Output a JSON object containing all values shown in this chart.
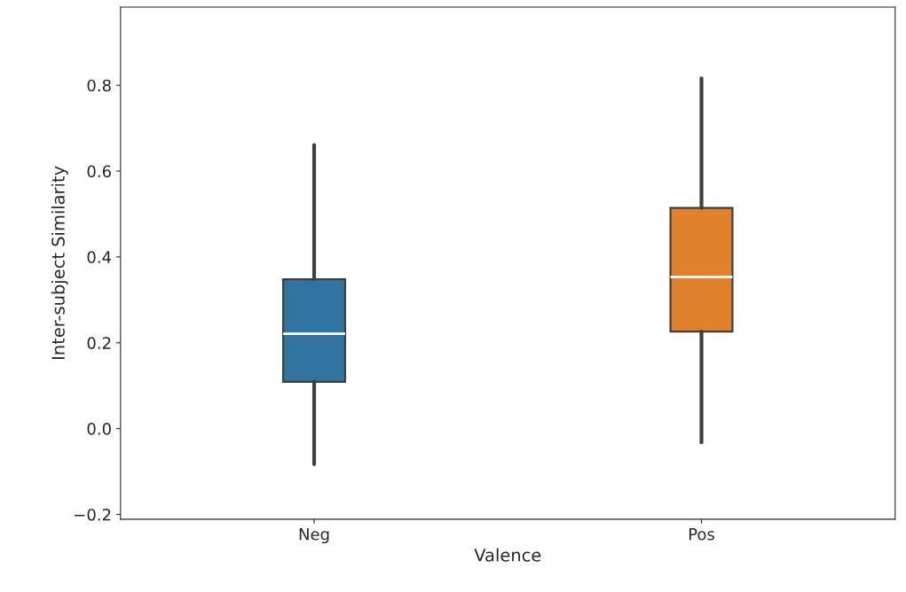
{
  "chart_data": {
    "type": "box",
    "xlabel": "Valence",
    "ylabel": "Inter-subject Similarity",
    "categories": [
      "Neg",
      "Pos"
    ],
    "colors": [
      "#3274a1",
      "#e1812c"
    ],
    "boxes": [
      {
        "low": -0.083,
        "q1": 0.109,
        "median": 0.221,
        "q3": 0.348,
        "high": 0.661
      },
      {
        "low": -0.032,
        "q1": 0.226,
        "median": 0.353,
        "q3": 0.514,
        "high": 0.816
      }
    ],
    "ylim": [
      -0.211,
      0.982
    ],
    "yticks": [
      {
        "value": -0.2,
        "label": "−0.2"
      },
      {
        "value": 0.0,
        "label": "0.0"
      },
      {
        "value": 0.2,
        "label": "0.2"
      },
      {
        "value": 0.4,
        "label": "0.4"
      },
      {
        "value": 0.6,
        "label": "0.6"
      },
      {
        "value": 0.8,
        "label": "0.8"
      }
    ],
    "grid": false
  }
}
